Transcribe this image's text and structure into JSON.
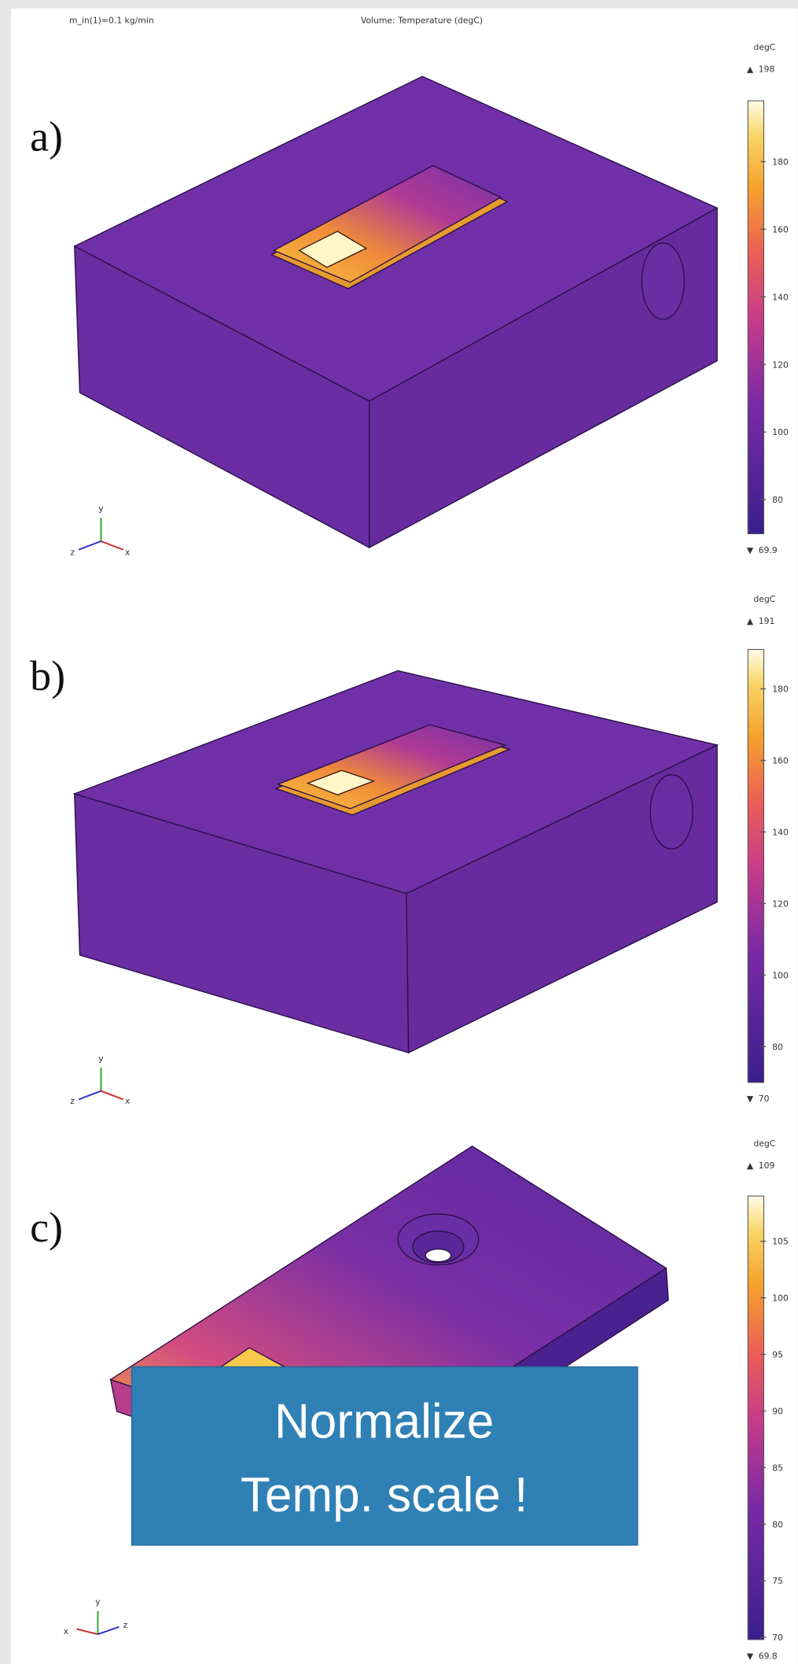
{
  "header": {
    "left": "m_in(1)=0.1 kg/min",
    "center": "Volume: Temperature (degC)"
  },
  "panels": [
    {
      "label": "a)",
      "colorbar": {
        "unit": "degC",
        "max": 198,
        "min": 69.9,
        "ticks": [
          80,
          100,
          120,
          140,
          160,
          180
        ]
      },
      "triad": [
        "y",
        "z",
        "x"
      ]
    },
    {
      "label": "b)",
      "colorbar": {
        "unit": "degC",
        "max": 191,
        "min": 70,
        "ticks": [
          80,
          100,
          120,
          140,
          160,
          180
        ]
      },
      "triad": [
        "y",
        "z",
        "x"
      ]
    },
    {
      "label": "c)",
      "colorbar": {
        "unit": "degC",
        "max": 109,
        "min": 69.8,
        "ticks": [
          70,
          75,
          80,
          85,
          90,
          95,
          100,
          105
        ]
      },
      "triad": [
        "y",
        "x",
        "z"
      ]
    }
  ],
  "note": {
    "lines": [
      "Normalize",
      "Temp. scale !"
    ]
  }
}
